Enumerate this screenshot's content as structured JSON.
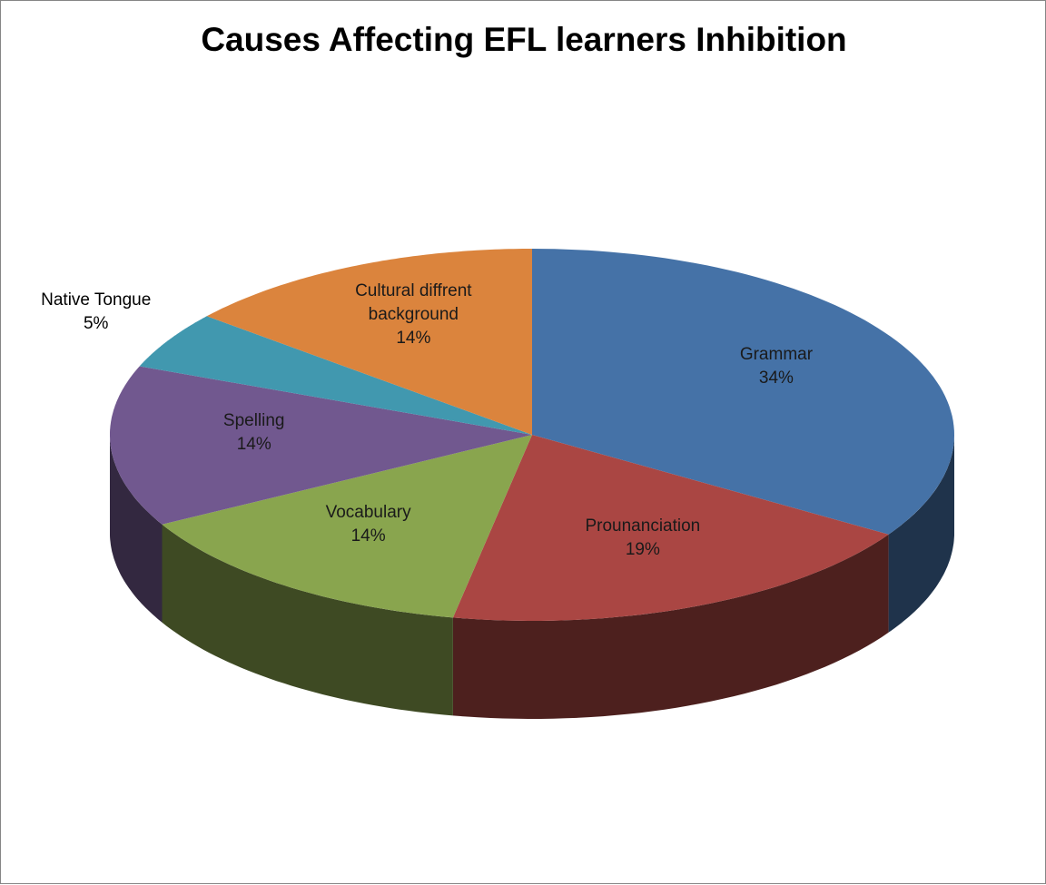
{
  "chart_data": {
    "type": "pie3d",
    "title": "Causes Affecting EFL learners Inhibition",
    "categories": [
      "Grammar",
      "Prounanciation",
      "Vocabulary",
      "Spelling",
      "Native Tongue",
      "Cultural diffrent background"
    ],
    "values": [
      34,
      19,
      14,
      14,
      5,
      14
    ],
    "value_labels": [
      "34%",
      "19%",
      "14%",
      "14%",
      "5%",
      "14%"
    ],
    "colors": [
      "#4572a7",
      "#aa4643",
      "#89a54e",
      "#71588f",
      "#4198af",
      "#db843d"
    ]
  }
}
